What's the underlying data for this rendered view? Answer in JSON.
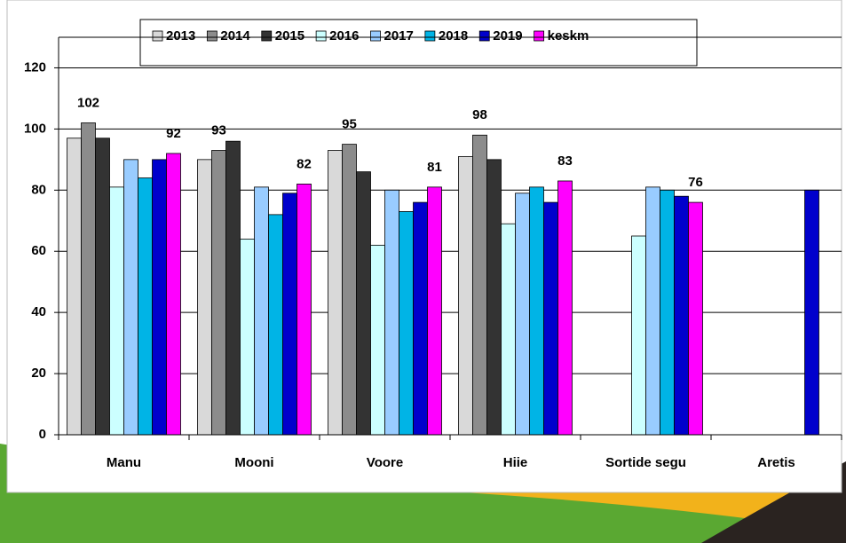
{
  "chart_data": {
    "type": "bar",
    "categories": [
      "Manu",
      "Mooni",
      "Voore",
      "Hiie",
      "Sortide segu",
      "Aretis"
    ],
    "series": [
      {
        "name": "2013",
        "color": "#d9d9d9",
        "values": [
          97,
          90,
          93,
          91,
          null,
          null
        ]
      },
      {
        "name": "2014",
        "color": "#8c8c8c",
        "values": [
          102,
          93,
          95,
          98,
          null,
          null
        ],
        "show_labels": true
      },
      {
        "name": "2015",
        "color": "#333333",
        "values": [
          97,
          96,
          86,
          90,
          null,
          null
        ]
      },
      {
        "name": "2016",
        "color": "#ccffff",
        "values": [
          81,
          64,
          62,
          69,
          65,
          null
        ]
      },
      {
        "name": "2017",
        "color": "#99ccff",
        "values": [
          90,
          81,
          80,
          79,
          81,
          null
        ]
      },
      {
        "name": "2018",
        "color": "#00b4e6",
        "values": [
          84,
          72,
          73,
          81,
          80,
          null
        ]
      },
      {
        "name": "2019",
        "color": "#0000cc",
        "values": [
          90,
          79,
          76,
          76,
          78,
          80
        ]
      },
      {
        "name": "keskm",
        "color": "#ff00ff",
        "values": [
          92,
          82,
          81,
          83,
          76,
          null
        ],
        "show_labels": true
      }
    ],
    "ylim": [
      0,
      130
    ],
    "yticks": [
      0,
      20,
      40,
      60,
      80,
      100,
      120
    ],
    "grid": true
  }
}
